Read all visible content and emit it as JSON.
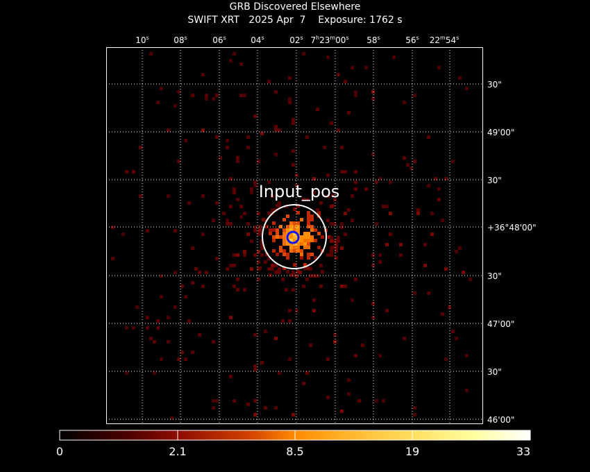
{
  "header": {
    "title": "GRB Discovered Elsewhere",
    "subtitle": "SWIFT XRT   2025 Apr  7    Exposure: 1762 s"
  },
  "ra_ticks": [
    {
      "hms": "",
      "sec": "10",
      "unit": "s"
    },
    {
      "hms": "",
      "sec": "08",
      "unit": "s"
    },
    {
      "hms": "",
      "sec": "06",
      "unit": "s"
    },
    {
      "hms": "",
      "sec": "04",
      "unit": "s"
    },
    {
      "hms": "",
      "sec": "02",
      "unit": "s"
    },
    {
      "hms": "7h23m",
      "sec": "00",
      "unit": "s"
    },
    {
      "hms": "",
      "sec": "58",
      "unit": "s"
    },
    {
      "hms": "",
      "sec": "56",
      "unit": "s"
    },
    {
      "hms": "22m",
      "sec": "54",
      "unit": "s"
    }
  ],
  "dec_ticks": [
    "30\"",
    "49'00\"",
    "30\"",
    "+36°48'00\"",
    "30\"",
    "47'00\"",
    "30\"",
    "46'00\""
  ],
  "source_label": "Input_pos",
  "colorbar": {
    "labels": [
      "0",
      "2.1",
      "8.5",
      "19",
      "33"
    ],
    "colors": [
      "#000000",
      "#5a0000",
      "#a01800",
      "#e05a00",
      "#ff9a10",
      "#ffd040",
      "#ffff90",
      "#ffffff"
    ]
  },
  "colors": {
    "grid": "#ffffff",
    "circle": "#ffffff",
    "marker": "#1010ff"
  }
}
